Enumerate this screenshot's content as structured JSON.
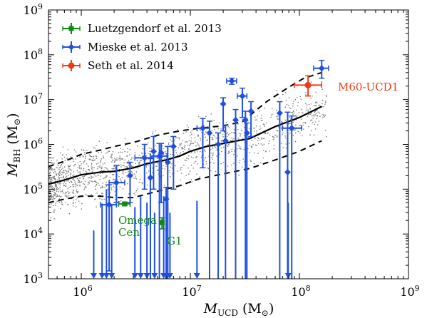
{
  "chart_data": {
    "type": "scatter",
    "x_scale": "log",
    "y_scale": "log",
    "xlim": [
      500000,
      1000000000
    ],
    "ylim": [
      1000,
      1000000000
    ],
    "x_ticks": [
      {
        "value": 1000000,
        "base": "10",
        "exp": "6"
      },
      {
        "value": 10000000,
        "base": "10",
        "exp": "7"
      },
      {
        "value": 100000000,
        "base": "10",
        "exp": "8"
      },
      {
        "value": 1000000000,
        "base": "10",
        "exp": "9"
      }
    ],
    "y_ticks": [
      {
        "value": 1000,
        "base": "10",
        "exp": "3"
      },
      {
        "value": 10000,
        "base": "10",
        "exp": "4"
      },
      {
        "value": 100000,
        "base": "10",
        "exp": "5"
      },
      {
        "value": 1000000,
        "base": "10",
        "exp": "6"
      },
      {
        "value": 10000000,
        "base": "10",
        "exp": "7"
      },
      {
        "value": 100000000,
        "base": "10",
        "exp": "8"
      },
      {
        "value": 1000000000,
        "base": "10",
        "exp": "9"
      }
    ],
    "xlabel": {
      "main": "M",
      "sub": "UCD",
      "unit": " (M",
      "unit_sub": "⊙",
      "close": ")"
    },
    "ylabel": {
      "main": "M",
      "sub": "BH",
      "unit": " (M",
      "unit_sub": "⊙",
      "close": ")"
    },
    "legend": {
      "placement": "top-left"
    },
    "series": [
      {
        "name": "Luetzgendorf et al. 2013",
        "color": "#0f8a0f",
        "marker": "square",
        "points": [
          {
            "x": 2500000,
            "y": 47000,
            "xerr": [
              300000,
              300000
            ],
            "yerr": [
              4000,
              4000
            ]
          },
          {
            "x": 5500000,
            "y": 18000,
            "xerr": [
              250000,
              250000
            ],
            "yerr": [
              5000,
              5000
            ]
          }
        ]
      },
      {
        "name": "Mieske et al. 2013",
        "color": "#1f4fe0",
        "marker": "diamond",
        "points": [
          {
            "x": 1800000,
            "y": 45000,
            "yerr_low": 43500,
            "yerr_high": 80000,
            "xerr": [
              300000,
              300000
            ]
          },
          {
            "x": 2100000,
            "y": 140000,
            "yerr_low": 90000,
            "yerr_high": 200000,
            "xerr": [
              300000,
              400000
            ]
          },
          {
            "x": 2800000,
            "y": 200000,
            "yerr_low": 150000,
            "yerr_high": 200000
          },
          {
            "x": 3800000,
            "y": 500000,
            "yerr_low": 400000,
            "yerr_high": 500000,
            "xerr": [
              700000,
              800000
            ]
          },
          {
            "x": 4300000,
            "y": 180000,
            "yerr_low": 179000,
            "yerr_high": 300000
          },
          {
            "x": 4600000,
            "y": 700000,
            "yerr_low": 600000,
            "yerr_high": 800000
          },
          {
            "x": 5200000,
            "y": 550000,
            "yerr_low": 549000,
            "yerr_high": 500000,
            "xerr": [
              900000,
              900000
            ]
          },
          {
            "x": 5400000,
            "y": 650000,
            "yerr_low": 600000,
            "yerr_high": 400000
          },
          {
            "x": 6200000,
            "y": 400000,
            "yerr_low": 399000,
            "yerr_high": 500000
          },
          {
            "x": 7000000,
            "y": 900000,
            "yerr_low": 800000,
            "yerr_high": 600000
          },
          {
            "x": 6000000,
            "y": 60000,
            "yerr_low": 59000,
            "yerr_high": 50000
          },
          {
            "x": 13000000,
            "y": 2300000,
            "yerr_low": 2000000,
            "yerr_high": 1500000,
            "xerr": [
              1500000,
              2000000
            ]
          },
          {
            "x": 15000000,
            "y": 1800000,
            "yerr_low": 1799000,
            "yerr_high": 1500000
          },
          {
            "x": 18000000,
            "y": 1000000,
            "yerr_low": 999000,
            "yerr_high": 800000
          },
          {
            "x": 20000000,
            "y": 8000000,
            "yerr_low": 6000000,
            "yerr_high": 3000000
          },
          {
            "x": 21000000,
            "y": 1200000,
            "yerr_low": 1199000,
            "yerr_high": 1500000
          },
          {
            "x": 24000000,
            "y": 26000000,
            "yerr_low": 4000000,
            "yerr_high": 4000000,
            "xerr": [
              2500000,
              2500000
            ]
          },
          {
            "x": 26000000,
            "y": 3500000,
            "yerr_low": 3499000,
            "yerr_high": 2500000
          },
          {
            "x": 30000000,
            "y": 12000000,
            "yerr_low": 8000000,
            "yerr_high": 6000000,
            "xerr": [
              3000000,
              3000000
            ]
          },
          {
            "x": 32000000,
            "y": 3500000,
            "yerr_low": 3499000,
            "yerr_high": 2000000
          },
          {
            "x": 33000000,
            "y": 1800000,
            "yerr_low": 1799000,
            "yerr_high": 1200000
          },
          {
            "x": 36000000,
            "y": 5500000,
            "yerr_low": 4000000,
            "yerr_high": 3500000
          },
          {
            "x": 66000000,
            "y": 5000000,
            "yerr_low": 4999000,
            "yerr_high": 4000000
          },
          {
            "x": 78000000,
            "y": 240000,
            "yerr_low": 239000,
            "yerr_high": 5000000
          },
          {
            "x": 85000000,
            "y": 2300000,
            "yerr_low": 2299000,
            "yerr_high": 2000000,
            "xerr": [
              15000000,
              20000000
            ]
          },
          {
            "x": 160000000,
            "y": 50000000,
            "yerr_low": 20000000,
            "yerr_high": 25000000,
            "xerr": [
              25000000,
              25000000
            ]
          }
        ],
        "upper_limits": [
          {
            "x": 1300000,
            "y_top": 12000
          },
          {
            "x": 1550000,
            "y_top": 48000
          },
          {
            "x": 1700000,
            "y_top": 100000
          },
          {
            "x": 1900000,
            "y_top": 45000
          },
          {
            "x": 3100000,
            "y_top": 40000
          },
          {
            "x": 3500000,
            "y_top": 70000
          },
          {
            "x": 4000000,
            "y_top": 50000
          },
          {
            "x": 4700000,
            "y_top": 30000
          },
          {
            "x": 5700000,
            "y_top": 70000
          },
          {
            "x": 6200000,
            "y_top": 50000
          },
          {
            "x": 6500000,
            "y_top": 30000
          },
          {
            "x": 11500000,
            "y_top": 55000
          },
          {
            "x": 79000000,
            "y_top": 50000
          }
        ]
      },
      {
        "name": "Seth et al. 2014",
        "color": "#f03a14",
        "marker": "circle",
        "points": [
          {
            "x": 120000000,
            "y": 21000000,
            "yerr_low": 9000000,
            "yerr_high": 13000000,
            "xerr": [
              30000000,
              40000000
            ]
          }
        ]
      }
    ],
    "model_median": [
      [
        500000,
        130000
      ],
      [
        700000,
        160000
      ],
      [
        1000000,
        210000
      ],
      [
        1500000,
        240000
      ],
      [
        2000000,
        250000
      ],
      [
        3000000,
        300000
      ],
      [
        4000000,
        370000
      ],
      [
        6000000,
        450000
      ],
      [
        8000000,
        550000
      ],
      [
        10000000,
        700000
      ],
      [
        14000000,
        900000
      ],
      [
        20000000,
        1050000
      ],
      [
        35000000,
        1350000
      ],
      [
        60000000,
        2500000
      ],
      [
        100000000,
        4000000
      ],
      [
        160000000,
        7000000
      ]
    ],
    "model_upper": [
      [
        500000,
        320000
      ],
      [
        700000,
        420000
      ],
      [
        1000000,
        600000
      ],
      [
        1500000,
        750000
      ],
      [
        2000000,
        900000
      ],
      [
        3000000,
        1100000
      ],
      [
        5000000,
        1600000
      ],
      [
        8000000,
        2000000
      ],
      [
        12000000,
        2300000
      ],
      [
        20000000,
        2600000
      ],
      [
        30000000,
        3200000
      ],
      [
        50000000,
        9000000
      ],
      [
        80000000,
        19000000
      ],
      [
        110000000,
        30000000
      ],
      [
        160000000,
        40000000
      ]
    ],
    "model_lower": [
      [
        500000,
        50000
      ],
      [
        700000,
        60000
      ],
      [
        1000000,
        70000
      ],
      [
        1500000,
        70000
      ],
      [
        2000000,
        65000
      ],
      [
        3000000,
        65000
      ],
      [
        5000000,
        90000
      ],
      [
        8000000,
        120000
      ],
      [
        12000000,
        170000
      ],
      [
        20000000,
        220000
      ],
      [
        35000000,
        290000
      ],
      [
        60000000,
        450000
      ],
      [
        100000000,
        700000
      ],
      [
        160000000,
        1200000
      ]
    ],
    "annotations": [
      {
        "text": "Omega",
        "color": "#0f8a0f"
      },
      {
        "text": "Cen",
        "color": "#0f8a0f"
      },
      {
        "text": "G1",
        "color": "#0f8a0f"
      },
      {
        "text": "M60-UCD1",
        "color": "#f03a14"
      }
    ]
  }
}
